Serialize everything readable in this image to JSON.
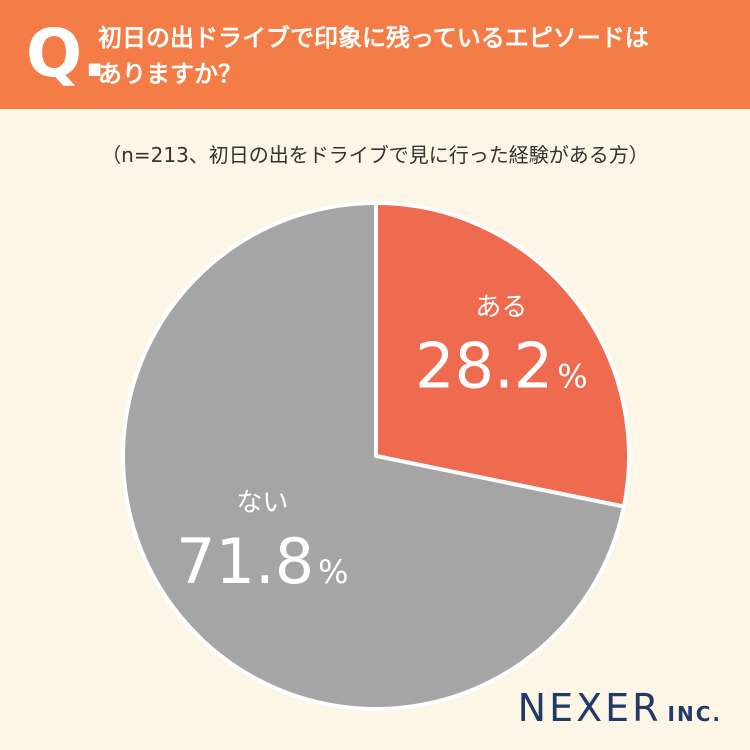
{
  "header": {
    "q_mark": "Q.",
    "question_line1": "初日の出ドライブで印象に残っているエピソードは",
    "question_line2": "ありますか？"
  },
  "subtitle": "（n=213、初日の出をドライブで見に行った経験がある方）",
  "chart_data": {
    "type": "pie",
    "title": "初日の出ドライブで印象に残っているエピソードはありますか？",
    "categories": [
      "ある",
      "ない"
    ],
    "values": [
      28.2,
      71.8
    ],
    "value_labels": [
      "28.2",
      "71.8"
    ],
    "unit": "%",
    "colors": [
      "#ee6b50",
      "#a5a5a5"
    ]
  },
  "logo": {
    "name": "NEXER",
    "suffix": "INC."
  }
}
